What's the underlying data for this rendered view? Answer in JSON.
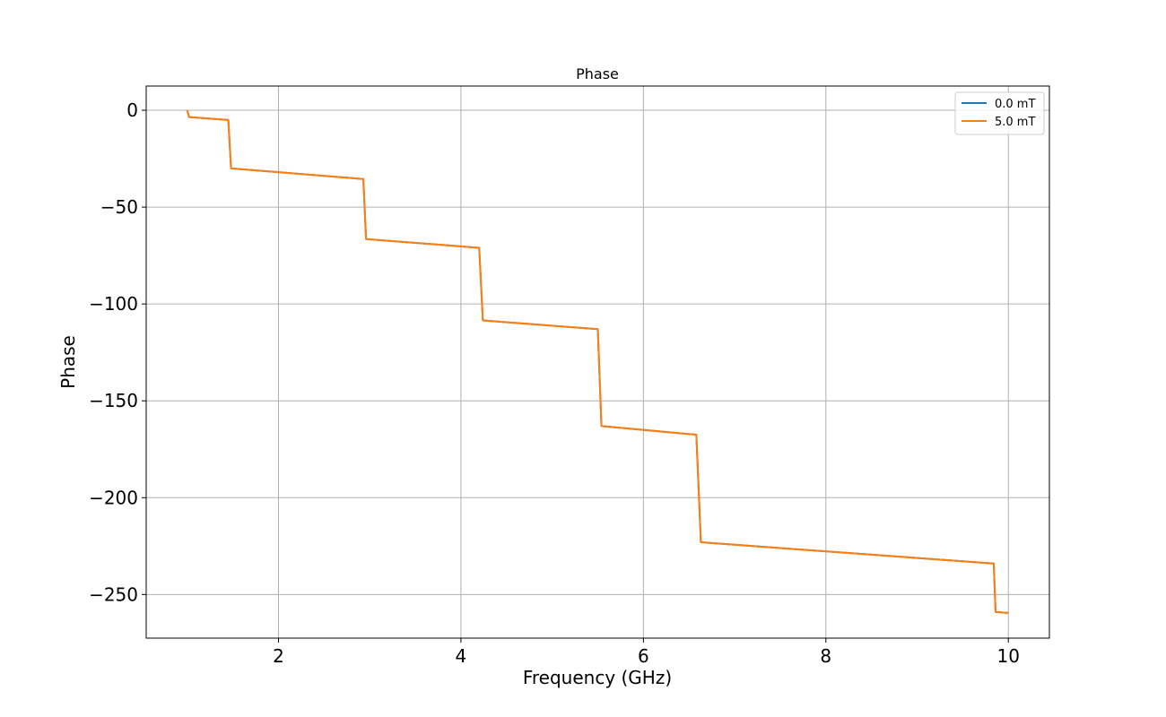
{
  "chart_data": {
    "type": "line",
    "title": "Phase",
    "xlabel": "Frequency (GHz)",
    "ylabel": "Phase",
    "xlim": [
      0.55,
      10.45
    ],
    "ylim": [
      -272.5,
      12.5
    ],
    "xticks": [
      2,
      4,
      6,
      8,
      10
    ],
    "xtick_labels": [
      "2",
      "4",
      "6",
      "8",
      "10"
    ],
    "yticks": [
      0,
      -50,
      -100,
      -150,
      -200,
      -250
    ],
    "ytick_labels": [
      "0",
      "−50",
      "−100",
      "−150",
      "−200",
      "−250"
    ],
    "grid": true,
    "legend_position": "top-right",
    "colors": {
      "series0": "#1f77b4",
      "series1": "#ff7f0e"
    },
    "series": [
      {
        "name": "0.0 mT",
        "x": [
          1.0,
          1.02,
          1.45,
          1.48,
          2.93,
          2.96,
          4.2,
          4.24,
          5.5,
          5.54,
          6.58,
          6.63,
          7.5,
          9.84,
          9.86,
          10.0
        ],
        "y": [
          0,
          -3.5,
          -5,
          -30,
          -35.5,
          -66.5,
          -71,
          -108.5,
          -113,
          -163,
          -167.5,
          -223,
          -226,
          -234,
          -259,
          -259.5
        ]
      },
      {
        "name": "5.0 mT",
        "x": [
          1.0,
          1.02,
          1.45,
          1.48,
          2.93,
          2.96,
          4.2,
          4.24,
          5.5,
          5.54,
          6.58,
          6.63,
          7.5,
          9.84,
          9.86,
          10.0
        ],
        "y": [
          0,
          -3.5,
          -5,
          -30,
          -35.5,
          -66.5,
          -71,
          -108.5,
          -113,
          -163,
          -167.5,
          -223,
          -226,
          -234,
          -259,
          -259.5
        ]
      }
    ]
  }
}
